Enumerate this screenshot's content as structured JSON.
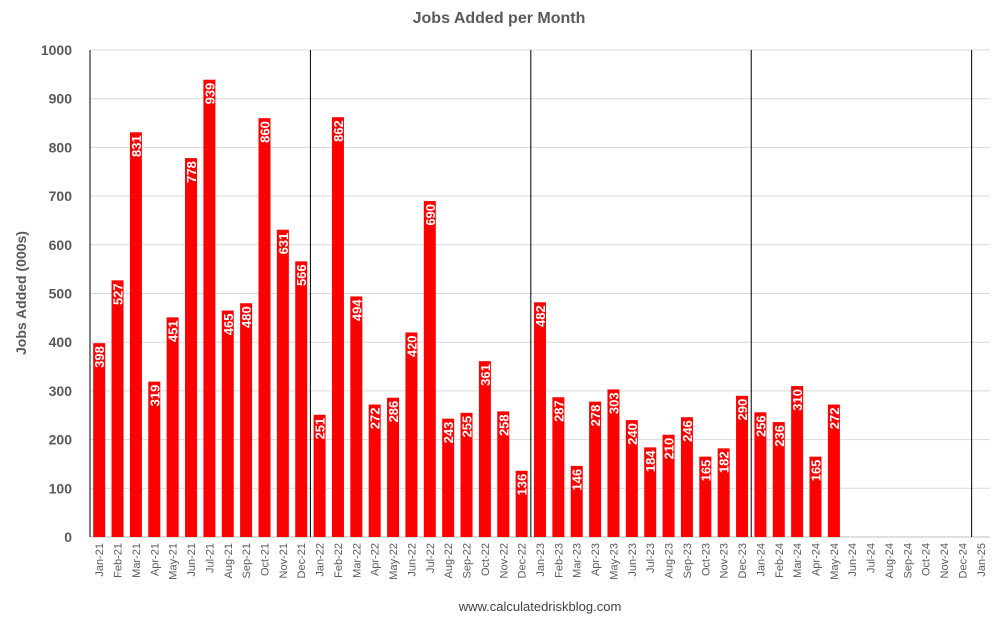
{
  "chart_data": {
    "type": "bar",
    "title": "Jobs Added per Month",
    "xlabel": "",
    "ylabel": "Jobs Added (000s)",
    "ylim": [
      0,
      1000
    ],
    "yticks": [
      0,
      100,
      200,
      300,
      400,
      500,
      600,
      700,
      800,
      900,
      1000
    ],
    "grid": true,
    "legend": "none",
    "bar_color": "#ff0000",
    "year_dividers": [
      "Jan-22",
      "Jan-23",
      "Jan-24",
      "Jan-25"
    ],
    "categories": [
      "Jan-21",
      "Feb-21",
      "Mar-21",
      "Apr-21",
      "May-21",
      "Jun-21",
      "Jul-21",
      "Aug-21",
      "Sep-21",
      "Oct-21",
      "Nov-21",
      "Dec-21",
      "Jan-22",
      "Feb-22",
      "Mar-22",
      "Apr-22",
      "May-22",
      "Jun-22",
      "Jul-22",
      "Aug-22",
      "Sep-22",
      "Oct-22",
      "Nov-22",
      "Dec-22",
      "Jan-23",
      "Feb-23",
      "Mar-23",
      "Apr-23",
      "May-23",
      "Jun-23",
      "Jul-23",
      "Aug-23",
      "Sep-23",
      "Oct-23",
      "Nov-23",
      "Dec-23",
      "Jan-24",
      "Feb-24",
      "Mar-24",
      "Apr-24",
      "May-24",
      "Jun-24",
      "Jul-24",
      "Aug-24",
      "Sep-24",
      "Oct-24",
      "Nov-24",
      "Dec-24",
      "Jan-25"
    ],
    "values": [
      398,
      527,
      831,
      319,
      451,
      778,
      939,
      465,
      480,
      860,
      631,
      566,
      251,
      862,
      494,
      272,
      286,
      420,
      690,
      243,
      255,
      361,
      258,
      136,
      482,
      287,
      146,
      278,
      303,
      240,
      184,
      210,
      246,
      165,
      182,
      290,
      256,
      236,
      310,
      165,
      272,
      null,
      null,
      null,
      null,
      null,
      null,
      null,
      null
    ]
  },
  "footer": {
    "source": "www.calculatedriskblog.com"
  }
}
